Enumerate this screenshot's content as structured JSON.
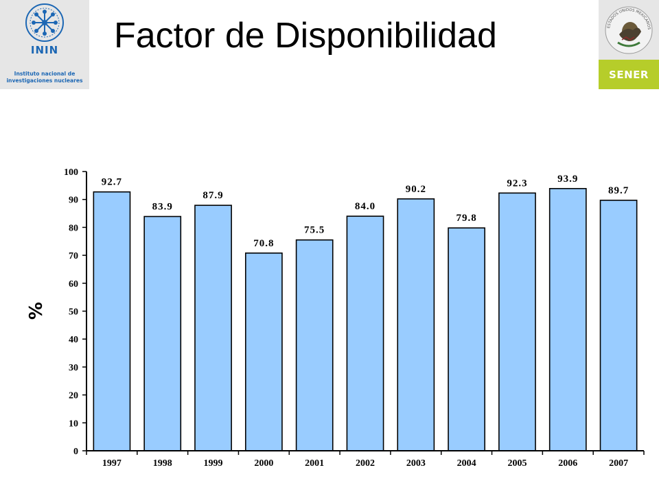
{
  "header": {
    "title": "Factor de Disponibilidad"
  },
  "logos": {
    "inin_name": "ININ",
    "inin_line1": "Instituto nacional de",
    "inin_line2": "investigaciones nucleares",
    "inin_color": "#1c67b4",
    "sener_name": "SENER",
    "sener_color": "#b6cd2a",
    "seal_text": "ESTADOS UNIDOS MEXICANOS"
  },
  "chart_data": {
    "type": "bar",
    "title": "",
    "xlabel": "",
    "ylabel": "%",
    "ylim": [
      0,
      100
    ],
    "yticks": [
      0,
      10,
      20,
      30,
      40,
      50,
      60,
      70,
      80,
      90,
      100
    ],
    "grid": false,
    "bar_color": "#99ccff",
    "categories": [
      "1997",
      "1998",
      "1999",
      "2000",
      "2001",
      "2002",
      "2003",
      "2004",
      "2005",
      "2006",
      "2007"
    ],
    "values": [
      92.7,
      83.9,
      87.9,
      70.8,
      75.5,
      84.0,
      90.2,
      79.8,
      92.3,
      93.9,
      89.7
    ],
    "value_labels": [
      "92.7",
      "83.9",
      "87.9",
      "70.8",
      "75.5",
      "84.0",
      "90.2",
      "79.8",
      "92.3",
      "93.9",
      "89.7"
    ]
  }
}
